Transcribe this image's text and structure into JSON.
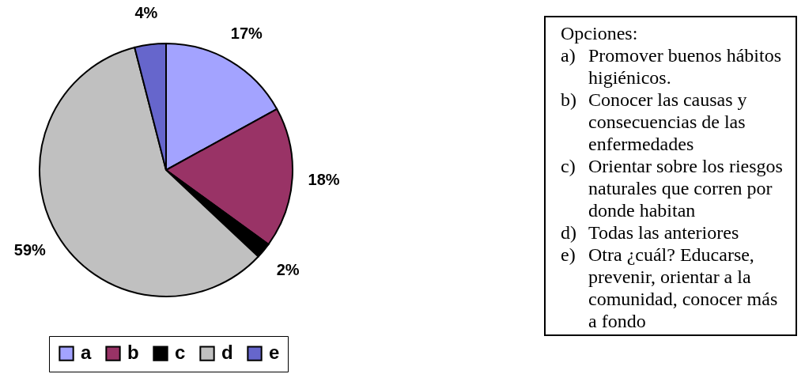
{
  "chart_data": {
    "type": "pie",
    "categories": [
      "a",
      "b",
      "c",
      "d",
      "e"
    ],
    "values": [
      17,
      18,
      2,
      59,
      4
    ],
    "colors": [
      "#a3a3ff",
      "#993366",
      "#000000",
      "#c0c0c0",
      "#6666cc"
    ],
    "value_labels": [
      "17%",
      "18%",
      "2%",
      "59%",
      "4%"
    ],
    "legend": "bottom",
    "annotations": [
      "Opciones:",
      "a) Promover buenos hábitos higiénicos.",
      "b) Conocer las causas y consecuencias de las enfermedades",
      "c) Orientar sobre los riesgos naturales que corren por donde habitan",
      "d) Todas las anteriores",
      "e) Otra ¿cuál? Educarse, prevenir, orientar a la comunidad, conocer más a fondo"
    ]
  }
}
